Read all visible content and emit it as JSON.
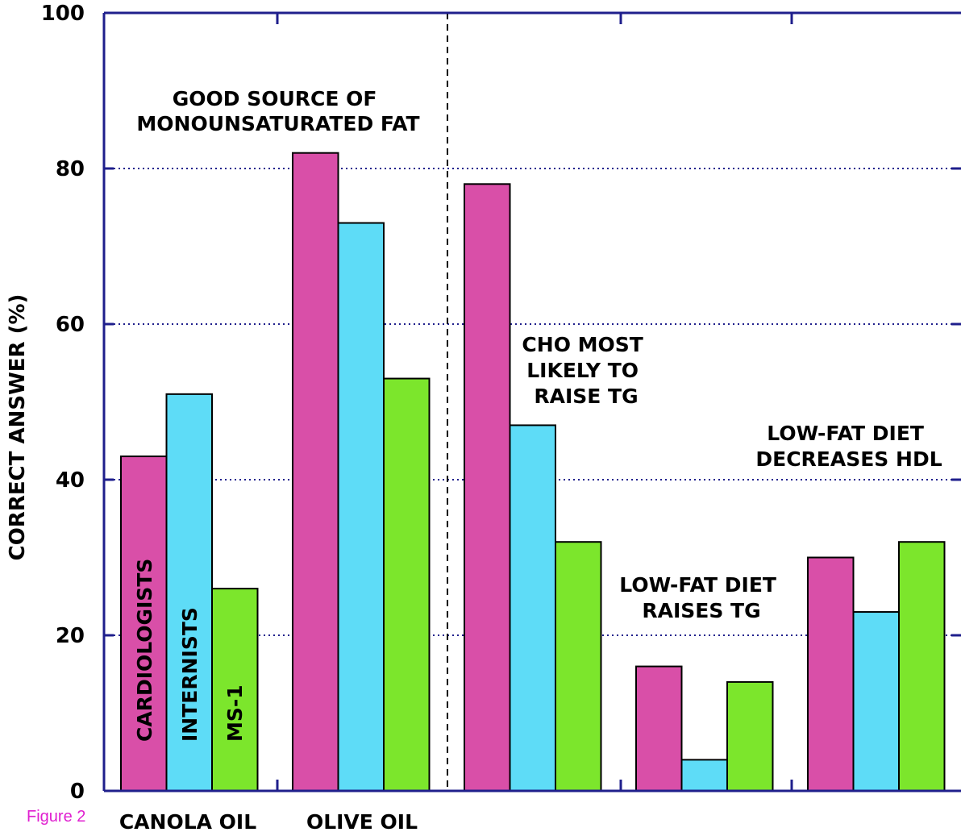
{
  "chart_data": {
    "type": "bar",
    "ylabel": "CORRECT ANSWER (%)",
    "ylim": [
      0,
      100
    ],
    "yticks": [
      "0",
      "20",
      "40",
      "60",
      "80",
      "100"
    ],
    "grid": "dotted horizontal at 20, 40, 60, 80",
    "categories": [
      "CANOLA OIL",
      "OLIVE OIL",
      "",
      "",
      ""
    ],
    "series": [
      {
        "name": "CARDIOLOGISTS",
        "color": "#d94fa8",
        "values": [
          43,
          82,
          78,
          16,
          30
        ]
      },
      {
        "name": "INTERNISTS",
        "color": "#5edcf7",
        "values": [
          51,
          73,
          47,
          4,
          23
        ]
      },
      {
        "name": "MS-1",
        "color": "#7ce62c",
        "values": [
          26,
          53,
          32,
          14,
          32
        ]
      }
    ],
    "annotations": [
      {
        "lines": [
          "GOOD SOURCE OF",
          "MONOUNSATURATED FAT"
        ]
      },
      {
        "lines": [
          "CHO MOST",
          "LIKELY TO",
          "RAISE TG"
        ]
      },
      {
        "lines": [
          "LOW-FAT DIET",
          "RAISES TG"
        ]
      },
      {
        "lines": [
          "LOW-FAT DIET",
          "DECREASES HDL"
        ]
      }
    ]
  },
  "figure_label": "Figure 2",
  "colors": {
    "axis": "#1f1f8c",
    "grid": "#1f1f8c",
    "figure_label": "#e020d0"
  }
}
